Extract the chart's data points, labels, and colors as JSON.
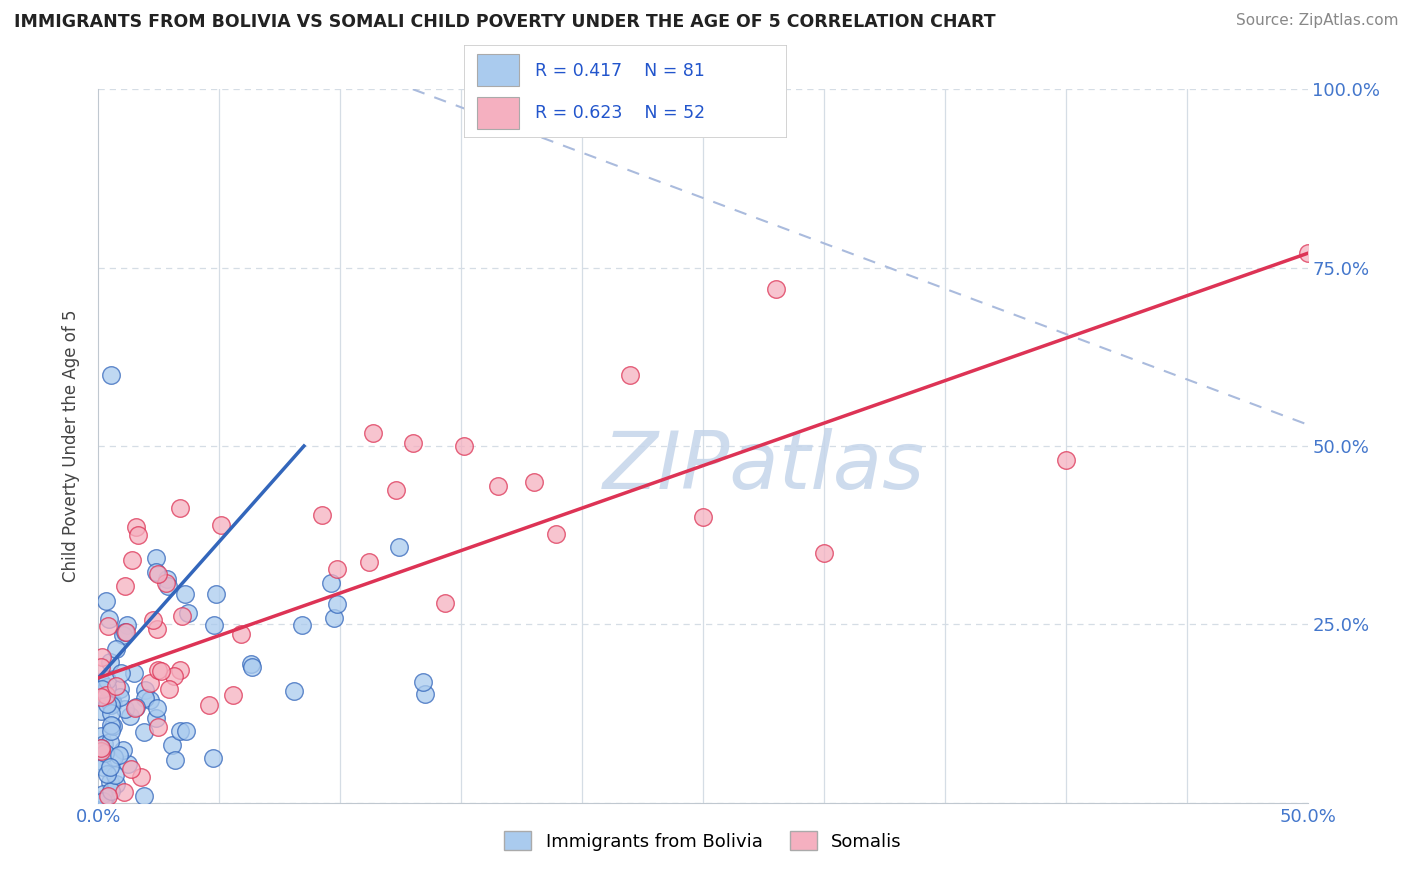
{
  "title": "IMMIGRANTS FROM BOLIVIA VS SOMALI CHILD POVERTY UNDER THE AGE OF 5 CORRELATION CHART",
  "source": "Source: ZipAtlas.com",
  "ylabel": "Child Poverty Under the Age of 5",
  "series1_label": "Immigrants from Bolivia",
  "series2_label": "Somalis",
  "color1": "#aacbee",
  "color2": "#f5b0c0",
  "line1_color": "#3366bb",
  "line2_color": "#dd3355",
  "dash_color": "#aabbdd",
  "watermark": "ZIPatlas",
  "watermark_color": "#c5d5ea",
  "legend_r1": "R = 0.417",
  "legend_n1": "N = 81",
  "legend_r2": "R = 0.623",
  "legend_n2": "N = 52",
  "xmin": 0.0,
  "xmax": 0.5,
  "ymin": 0.0,
  "ymax": 1.0,
  "bolivia_line_x": [
    0.0,
    0.085
  ],
  "bolivia_line_y": [
    0.175,
    0.5
  ],
  "somali_line_x": [
    0.0,
    0.5
  ],
  "somali_line_y": [
    0.175,
    0.77
  ],
  "dash_line_x": [
    0.13,
    0.5
  ],
  "dash_line_y": [
    1.0,
    0.53
  ]
}
